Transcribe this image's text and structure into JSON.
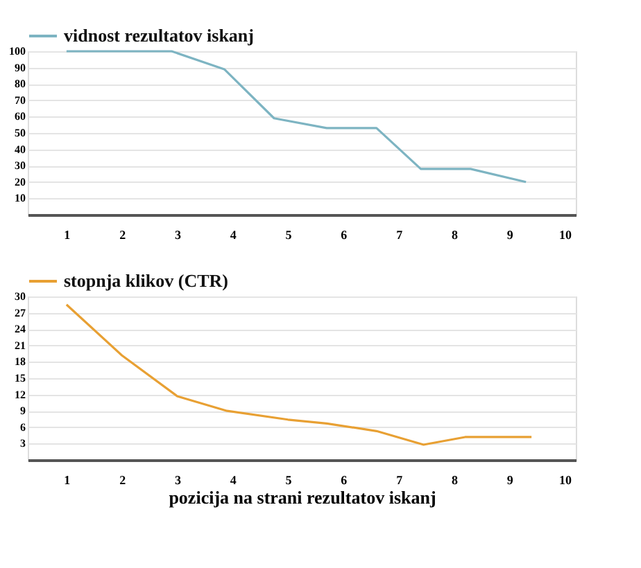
{
  "chart_data": [
    {
      "type": "line",
      "x": [
        1,
        2.9,
        3.85,
        4.75,
        5.7,
        6.6,
        7.4,
        8.3,
        9.3
      ],
      "series": [
        {
          "name": "vidnost rezultatov iskanj",
          "color": "#7db4c2",
          "values": [
            100,
            100,
            89,
            59,
            53,
            53,
            28,
            28,
            20
          ]
        }
      ],
      "xlim": [
        0.3,
        10.2
      ],
      "xticks": [
        1,
        2,
        3,
        4,
        5,
        6,
        7,
        8,
        9,
        10
      ],
      "ylim": [
        0,
        100
      ],
      "yticks": [
        10,
        20,
        30,
        40,
        50,
        60,
        70,
        80,
        90,
        100
      ],
      "grid": "y",
      "legend": "top left",
      "marker": "none",
      "line_style": "solid"
    },
    {
      "type": "line",
      "x": [
        1,
        2,
        3,
        3.9,
        5,
        5.7,
        6.6,
        7.45,
        8.2,
        9.4
      ],
      "series": [
        {
          "name": "stopnja klikov (CTR)",
          "color": "#e8a033",
          "values": [
            28.5,
            19.2,
            11.7,
            9,
            7.4,
            6.7,
            5.3,
            2.8,
            4.2,
            4.2
          ]
        }
      ],
      "xlabel": "pozicija na strani rezultatov iskanj",
      "xlim": [
        0.3,
        10.2
      ],
      "xticks": [
        1,
        2,
        3,
        4,
        5,
        6,
        7,
        8,
        9,
        10
      ],
      "ylim": [
        0,
        30
      ],
      "yticks": [
        3,
        6,
        9,
        12,
        15,
        18,
        21,
        24,
        27,
        30
      ],
      "grid": "y",
      "legend": "top left",
      "marker": "none",
      "line_style": "solid"
    }
  ]
}
